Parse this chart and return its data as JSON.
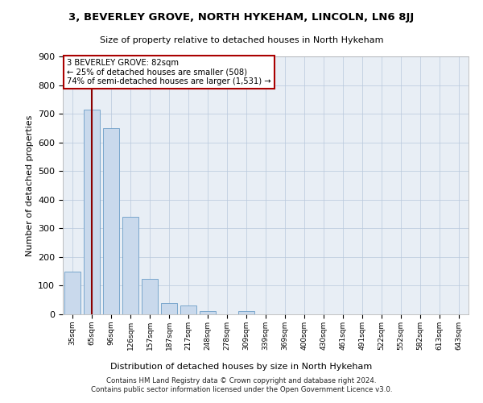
{
  "title": "3, BEVERLEY GROVE, NORTH HYKEHAM, LINCOLN, LN6 8JJ",
  "subtitle": "Size of property relative to detached houses in North Hykeham",
  "xlabel": "Distribution of detached houses by size in North Hykeham",
  "ylabel": "Number of detached properties",
  "footer_line1": "Contains HM Land Registry data © Crown copyright and database right 2024.",
  "footer_line2": "Contains public sector information licensed under the Open Government Licence v3.0.",
  "annotation_line1": "3 BEVERLEY GROVE: 82sqm",
  "annotation_line2": "← 25% of detached houses are smaller (508)",
  "annotation_line3": "74% of semi-detached houses are larger (1,531) →",
  "bar_color": "#c9d9ec",
  "bar_edge_color": "#6b9dc7",
  "vline_color": "#8b0000",
  "vline_x_index": 1,
  "categories": [
    "35sqm",
    "65sqm",
    "96sqm",
    "126sqm",
    "157sqm",
    "187sqm",
    "217sqm",
    "248sqm",
    "278sqm",
    "309sqm",
    "339sqm",
    "369sqm",
    "400sqm",
    "430sqm",
    "461sqm",
    "491sqm",
    "522sqm",
    "552sqm",
    "582sqm",
    "613sqm",
    "643sqm"
  ],
  "bar_heights": [
    150,
    715,
    650,
    340,
    125,
    38,
    30,
    10,
    0,
    10,
    0,
    0,
    0,
    0,
    0,
    0,
    0,
    0,
    0,
    0,
    0
  ],
  "ylim": [
    0,
    900
  ],
  "yticks": [
    0,
    100,
    200,
    300,
    400,
    500,
    600,
    700,
    800,
    900
  ],
  "background_color": "#ffffff",
  "axes_bg_color": "#e8eef5",
  "grid_color": "#b8c8dc",
  "annotation_box_color": "#ffffff",
  "annotation_box_edge": "#aa0000"
}
